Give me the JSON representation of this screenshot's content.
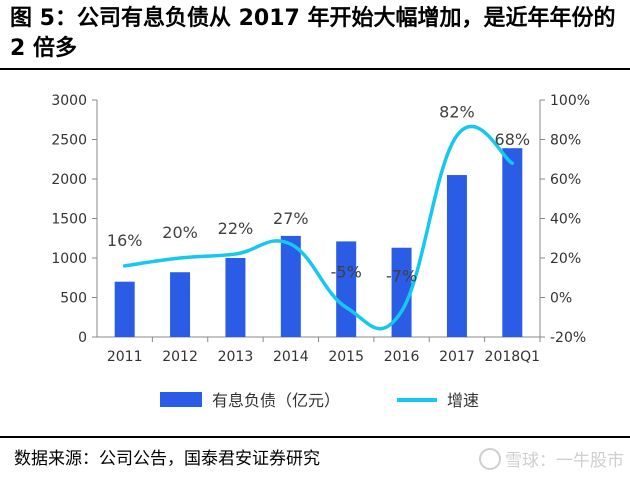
{
  "figure": {
    "title": "图 5：公司有息负债从 2017 年开始大幅增加，是近年年份的 2 倍多",
    "source": "数据来源：公司公告，国泰君安证券研究",
    "watermark": "雪球：一牛股市"
  },
  "chart_data": {
    "type": "bar",
    "categories": [
      "2011",
      "2012",
      "2013",
      "2014",
      "2015",
      "2016",
      "2017",
      "2018Q1"
    ],
    "series": [
      {
        "name": "有息负债（亿元）",
        "type": "bar",
        "axis": "left",
        "values": [
          700,
          820,
          1000,
          1280,
          1210,
          1130,
          2050,
          2390
        ],
        "color": "#2B5CE6"
      },
      {
        "name": "增速",
        "type": "line",
        "axis": "right",
        "values": [
          16,
          20,
          22,
          27,
          -5,
          -7,
          82,
          68
        ],
        "labels": [
          "16%",
          "20%",
          "22%",
          "27%",
          "-5%",
          "-7%",
          "82%",
          "68%"
        ],
        "color": "#16C8F0"
      }
    ],
    "y_left": {
      "min": 0,
      "max": 3000,
      "ticks": [
        "0",
        "500",
        "1000",
        "1500",
        "2000",
        "2500",
        "3000"
      ]
    },
    "y_right": {
      "min": -20,
      "max": 100,
      "ticks": [
        "-20%",
        "0%",
        "20%",
        "40%",
        "60%",
        "80%",
        "100%"
      ]
    },
    "grid": false,
    "legend_position": "bottom"
  }
}
